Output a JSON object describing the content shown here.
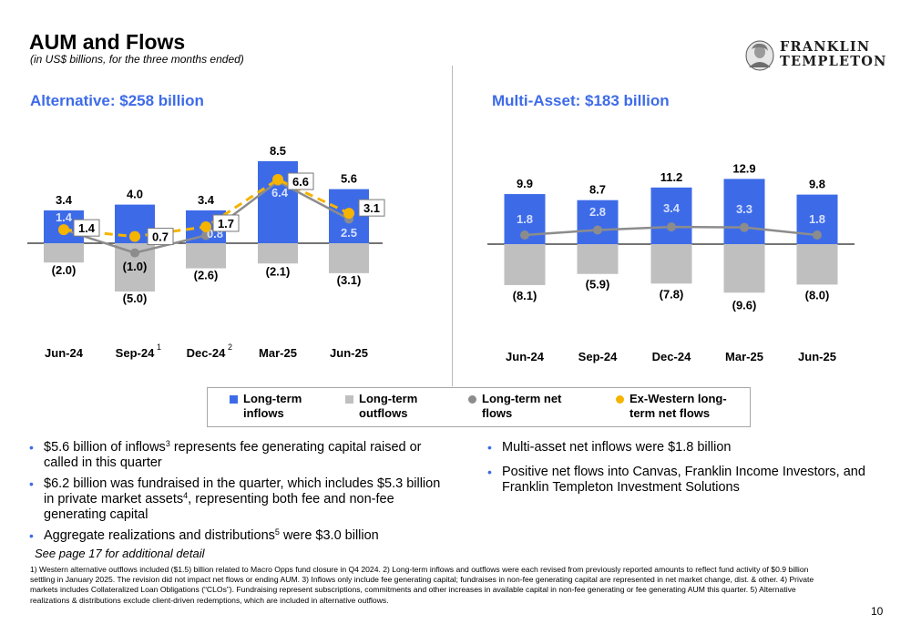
{
  "header": {
    "title": "AUM and Flows",
    "subtitle": "(in US$ billions, for the three months ended)",
    "logo_line1": "FRANKLIN",
    "logo_line2": "TEMPLETON"
  },
  "colors": {
    "inflows": "#3d6be8",
    "outflows": "#bfbfbf",
    "net_flows": "#8c8c8c",
    "ex_western": "#f5b400",
    "accent": "#3d6be8"
  },
  "chart_data": [
    {
      "type": "bar",
      "title": "Alternative: $258 billion",
      "categories": [
        "Jun-24",
        "Sep-24",
        "Dec-24",
        "Mar-25",
        "Jun-25"
      ],
      "category_superscripts": [
        "",
        "1",
        "2",
        "",
        ""
      ],
      "series": [
        {
          "name": "Long-term inflows",
          "values": [
            3.4,
            4.0,
            3.4,
            8.5,
            5.6
          ]
        },
        {
          "name": "Long-term outflows",
          "values": [
            -2.0,
            -5.0,
            -2.6,
            -2.1,
            -3.1
          ]
        },
        {
          "name": "Long-term net flows",
          "values": [
            1.4,
            -1.0,
            0.8,
            6.4,
            2.5
          ]
        },
        {
          "name": "Ex-Western long-term net flows",
          "values": [
            1.4,
            0.7,
            1.7,
            6.6,
            3.1
          ]
        }
      ],
      "value_labels": {
        "inflows": [
          "3.4",
          "4.0",
          "3.4",
          "8.5",
          "5.6"
        ],
        "outflows": [
          "(2.0)",
          "(5.0)",
          "(2.6)",
          "(2.1)",
          "(3.1)"
        ],
        "net": [
          "1.4",
          "(1.0)",
          "0.8",
          "6.4",
          "2.5"
        ],
        "ex_western": [
          "1.4",
          "0.7",
          "1.7",
          "6.6",
          "3.1"
        ]
      },
      "ylim": [
        -5.0,
        8.5
      ],
      "grid": false,
      "legend": "bottom"
    },
    {
      "type": "bar",
      "title": "Multi-Asset: $183 billion",
      "categories": [
        "Jun-24",
        "Sep-24",
        "Dec-24",
        "Mar-25",
        "Jun-25"
      ],
      "category_superscripts": [
        "",
        "",
        "",
        "",
        ""
      ],
      "series": [
        {
          "name": "Long-term inflows",
          "values": [
            9.9,
            8.7,
            11.2,
            12.9,
            9.8
          ]
        },
        {
          "name": "Long-term outflows",
          "values": [
            -8.1,
            -5.9,
            -7.8,
            -9.6,
            -8.0
          ]
        },
        {
          "name": "Long-term net flows",
          "values": [
            1.8,
            2.8,
            3.4,
            3.3,
            1.8
          ]
        }
      ],
      "value_labels": {
        "inflows": [
          "9.9",
          "8.7",
          "11.2",
          "12.9",
          "9.8"
        ],
        "outflows": [
          "(8.1)",
          "(5.9)",
          "(7.8)",
          "(9.6)",
          "(8.0)"
        ],
        "net": [
          "1.8",
          "2.8",
          "3.4",
          "3.3",
          "1.8"
        ]
      },
      "ylim": [
        -9.6,
        12.9
      ],
      "grid": false,
      "legend": "bottom"
    }
  ],
  "legend": [
    {
      "label": "Long-term\ninflows",
      "shape": "square",
      "color": "#3d6be8"
    },
    {
      "label": "Long-term\noutflows",
      "shape": "square",
      "color": "#bfbfbf"
    },
    {
      "label": "Long-term net\nflows",
      "shape": "circle",
      "color": "#8c8c8c"
    },
    {
      "label": "Ex-Western long-\nterm net flows",
      "shape": "circle",
      "color": "#f5b400"
    }
  ],
  "left_bullets": [
    {
      "pre": "$5.6 billion of inflows",
      "sup": "3",
      "post": " represents fee generating capital raised or called in this quarter"
    },
    {
      "pre": "$6.2 billion was fundraised in the quarter, which includes $5.3 billion in private market assets",
      "sup": "4",
      "post": ", representing both fee and non-fee generating capital"
    },
    {
      "pre": "Aggregate realizations and distributions",
      "sup": "5",
      "post": " were $3.0 billion"
    }
  ],
  "right_bullets": [
    {
      "pre": "Multi-asset net inflows were $1.8 billion",
      "sup": "",
      "post": ""
    },
    {
      "pre": "Positive net flows into Canvas, Franklin Income Investors, and Franklin Templeton Investment Solutions",
      "sup": "",
      "post": ""
    }
  ],
  "bullet_symbol": "•",
  "note": "See page 17 for additional detail",
  "footnotes": "1) Western alternative outflows included ($1.5) billion related to Macro Opps fund closure in Q4 2024. 2) Long-term inflows and outflows were each revised from previously reported amounts to reflect fund activity of $0.9 billion settling in January 2025. The revision did not impact net flows or ending AUM. 3) Inflows only include fee generating capital; fundraises in non-fee generating capital are represented in net market change, dist. & other. 4) Private markets includes Collateralized Loan Obligations (“CLOs”). Fundraising represent subscriptions, commitments and other increases in available capital in non-fee generating or fee generating AUM this quarter. 5) Alternative realizations & distributions exclude client-driven redemptions, which are included in alternative outflows.",
  "page_number": "10"
}
